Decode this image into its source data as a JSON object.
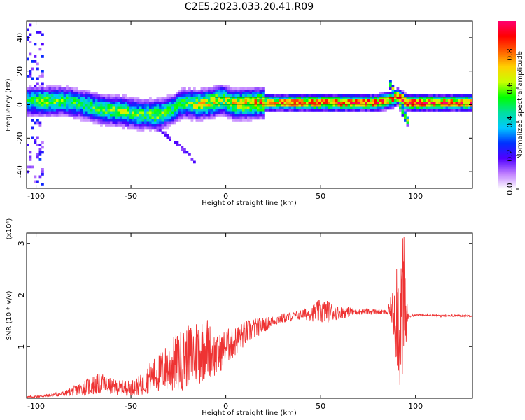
{
  "figure": {
    "title": "C2E5.2023.033.20.41.R09"
  },
  "chart_data": [
    {
      "type": "heatmap",
      "title": "C2E5.2023.033.20.41.R09",
      "xlabel": "Height of straight line (km)",
      "ylabel": "Frequency (Hz)",
      "xlim": [
        -105,
        130
      ],
      "ylim": [
        -50,
        50
      ],
      "xticks": [
        -100,
        -50,
        0,
        50,
        100
      ],
      "yticks": [
        -40,
        -20,
        0,
        20,
        40
      ],
      "colorbar": {
        "label": "Normalized spectral amplitude",
        "range": [
          0,
          1
        ],
        "ticks": [
          "0.0",
          "0.2",
          "0.4",
          "0.6",
          "0.8"
        ],
        "colormap": [
          "#ffffff",
          "#c080ff",
          "#5000ff",
          "#0030ff",
          "#00c8ff",
          "#00e0a0",
          "#00ff00",
          "#c8ff00",
          "#ffd000",
          "#ff6000",
          "#ff0000",
          "#ff0070"
        ]
      },
      "ridge": {
        "description_points_x": [
          -103,
          -95,
          -85,
          -75,
          -65,
          -55,
          -45,
          -35,
          -28,
          -22,
          -15,
          -8,
          -2,
          5,
          20,
          40,
          60,
          80,
          88,
          91,
          95,
          110,
          130
        ],
        "frequency_hz": [
          2,
          2,
          2,
          0,
          -3,
          -4,
          -6,
          -6,
          -3,
          1,
          0,
          1,
          3,
          0,
          1,
          1,
          1,
          1,
          3,
          5,
          1,
          1,
          1
        ],
        "amplitude": [
          0.5,
          0.6,
          0.55,
          0.5,
          0.55,
          0.6,
          0.55,
          0.6,
          0.5,
          0.55,
          0.65,
          0.7,
          0.65,
          0.7,
          0.8,
          0.9,
          0.9,
          0.9,
          0.8,
          0.85,
          0.95,
          0.9,
          0.85
        ]
      },
      "low_amplitude_feature": {
        "x": [
          -40,
          -36,
          -32,
          -28,
          -24,
          -20,
          -16
        ],
        "frequency_hz": [
          -10,
          -14,
          -17,
          -21,
          -25,
          -29,
          -34
        ]
      },
      "spike": {
        "x": [
          88,
          90,
          92,
          94
        ],
        "frequency_hz": [
          [
            5,
            15
          ],
          [
            -5,
            10
          ],
          [
            -10,
            5
          ],
          [
            -12,
            2
          ]
        ]
      }
    },
    {
      "type": "line",
      "xlabel": "Height of straight line (km)",
      "ylabel": "SNR (10 * v/v)",
      "y_multiplier": "(x10⁴)",
      "xlim": [
        -105,
        130
      ],
      "ylim": [
        0,
        3.2
      ],
      "xticks": [
        -100,
        -50,
        0,
        50,
        100
      ],
      "yticks": [
        1,
        2,
        3
      ],
      "color": "#ee3333",
      "series": [
        {
          "x": [
            -105,
            -95,
            -85,
            -75,
            -70,
            -65,
            -60,
            -55,
            -50,
            -45,
            -40,
            -35,
            -30,
            -25,
            -20,
            -15,
            -10,
            -5,
            0,
            5,
            10,
            15,
            20,
            25,
            30,
            35,
            40,
            45,
            50,
            55,
            60,
            65,
            70,
            75,
            80,
            85,
            88,
            90,
            92,
            94,
            95,
            96,
            97,
            100,
            105,
            110,
            115,
            120,
            125,
            130
          ],
          "values": [
            0.02,
            0.05,
            0.09,
            0.2,
            0.25,
            0.28,
            0.22,
            0.2,
            0.2,
            0.25,
            0.4,
            0.5,
            0.6,
            0.7,
            0.8,
            0.9,
            1.0,
            0.8,
            1.0,
            1.1,
            1.25,
            1.35,
            1.42,
            1.5,
            1.55,
            1.58,
            1.62,
            1.65,
            1.68,
            1.68,
            1.66,
            1.67,
            1.68,
            1.68,
            1.67,
            1.66,
            1.7,
            1.8,
            1.5,
            1.7,
            1.58,
            1.58,
            1.6,
            1.61,
            1.62,
            1.6,
            1.6,
            1.6,
            1.6,
            1.6
          ],
          "noise_amplitude": [
            0.02,
            0.03,
            0.05,
            0.15,
            0.2,
            0.2,
            0.15,
            0.15,
            0.15,
            0.2,
            0.3,
            0.4,
            0.5,
            0.6,
            0.6,
            0.7,
            0.6,
            0.4,
            0.35,
            0.3,
            0.25,
            0.2,
            0.15,
            0.1,
            0.1,
            0.08,
            0.1,
            0.15,
            0.25,
            0.2,
            0.12,
            0.1,
            0.06,
            0.06,
            0.05,
            0.05,
            0.4,
            1.2,
            1.5,
            1.5,
            0.9,
            0.05,
            0.03,
            0.02,
            0.02,
            0.02,
            0.02,
            0.02,
            0.02,
            0.02
          ]
        }
      ]
    }
  ]
}
